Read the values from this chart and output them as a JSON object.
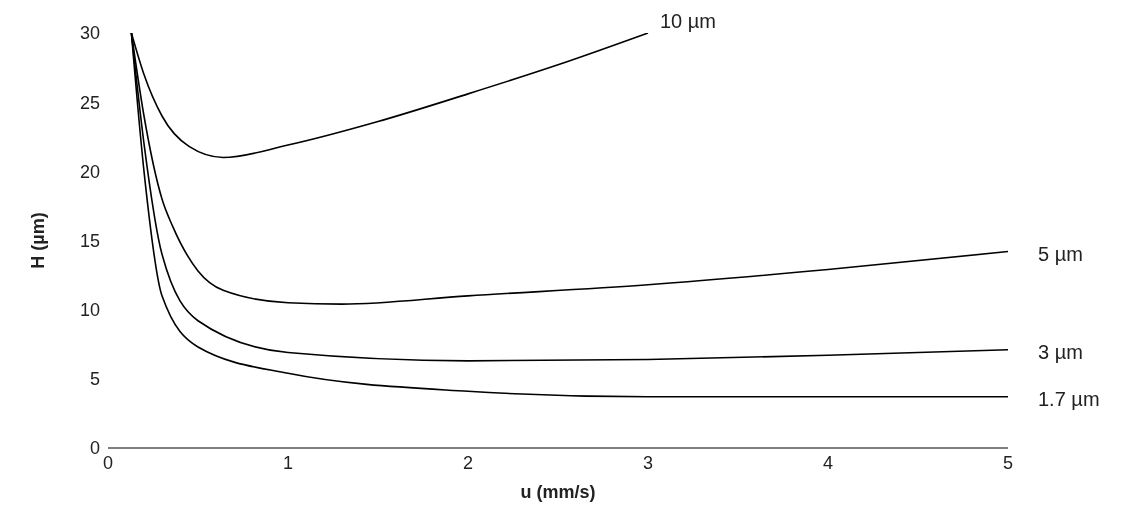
{
  "chart_data": {
    "type": "line",
    "xlabel": "u (mm/s)",
    "ylabel": "H (µm)",
    "xlim": [
      0,
      5
    ],
    "ylim": [
      0,
      30
    ],
    "xticks": [
      0,
      1,
      2,
      3,
      4,
      5
    ],
    "yticks": [
      0,
      5,
      10,
      15,
      20,
      25,
      30
    ],
    "grid": false,
    "legend": false,
    "marker": "none",
    "line_style": "solid",
    "series": [
      {
        "name": "10 µm",
        "color": "#000000",
        "x": [
          0.13,
          0.2,
          0.3,
          0.45,
          0.64,
          1,
          1.5,
          2,
          2.5,
          3
        ],
        "values": [
          30,
          27,
          24,
          21.8,
          21,
          21.9,
          23.6,
          25.6,
          27.7,
          30
        ]
      },
      {
        "name": "5 µm",
        "color": "#000000",
        "x": [
          0.13,
          0.2,
          0.3,
          0.36,
          0.5,
          0.64,
          1,
          1.3,
          2,
          3,
          4,
          5
        ],
        "values": [
          30,
          24,
          18,
          16,
          12.8,
          11.4,
          10.5,
          10.4,
          11,
          11.8,
          12.9,
          14.2
        ]
      },
      {
        "name": "3 µm",
        "color": "#000000",
        "x": [
          0.13,
          0.2,
          0.3,
          0.5,
          1,
          2,
          3,
          4,
          5
        ],
        "values": [
          30,
          22,
          14,
          9.2,
          6.9,
          6.3,
          6.4,
          6.7,
          7.1
        ]
      },
      {
        "name": "1.7 µm",
        "color": "#000000",
        "x": [
          0.13,
          0.2,
          0.3,
          0.5,
          1,
          2,
          3,
          4,
          5
        ],
        "values": [
          30,
          20,
          11,
          7.3,
          5.4,
          4.1,
          3.7,
          3.7,
          3.7
        ]
      }
    ]
  }
}
